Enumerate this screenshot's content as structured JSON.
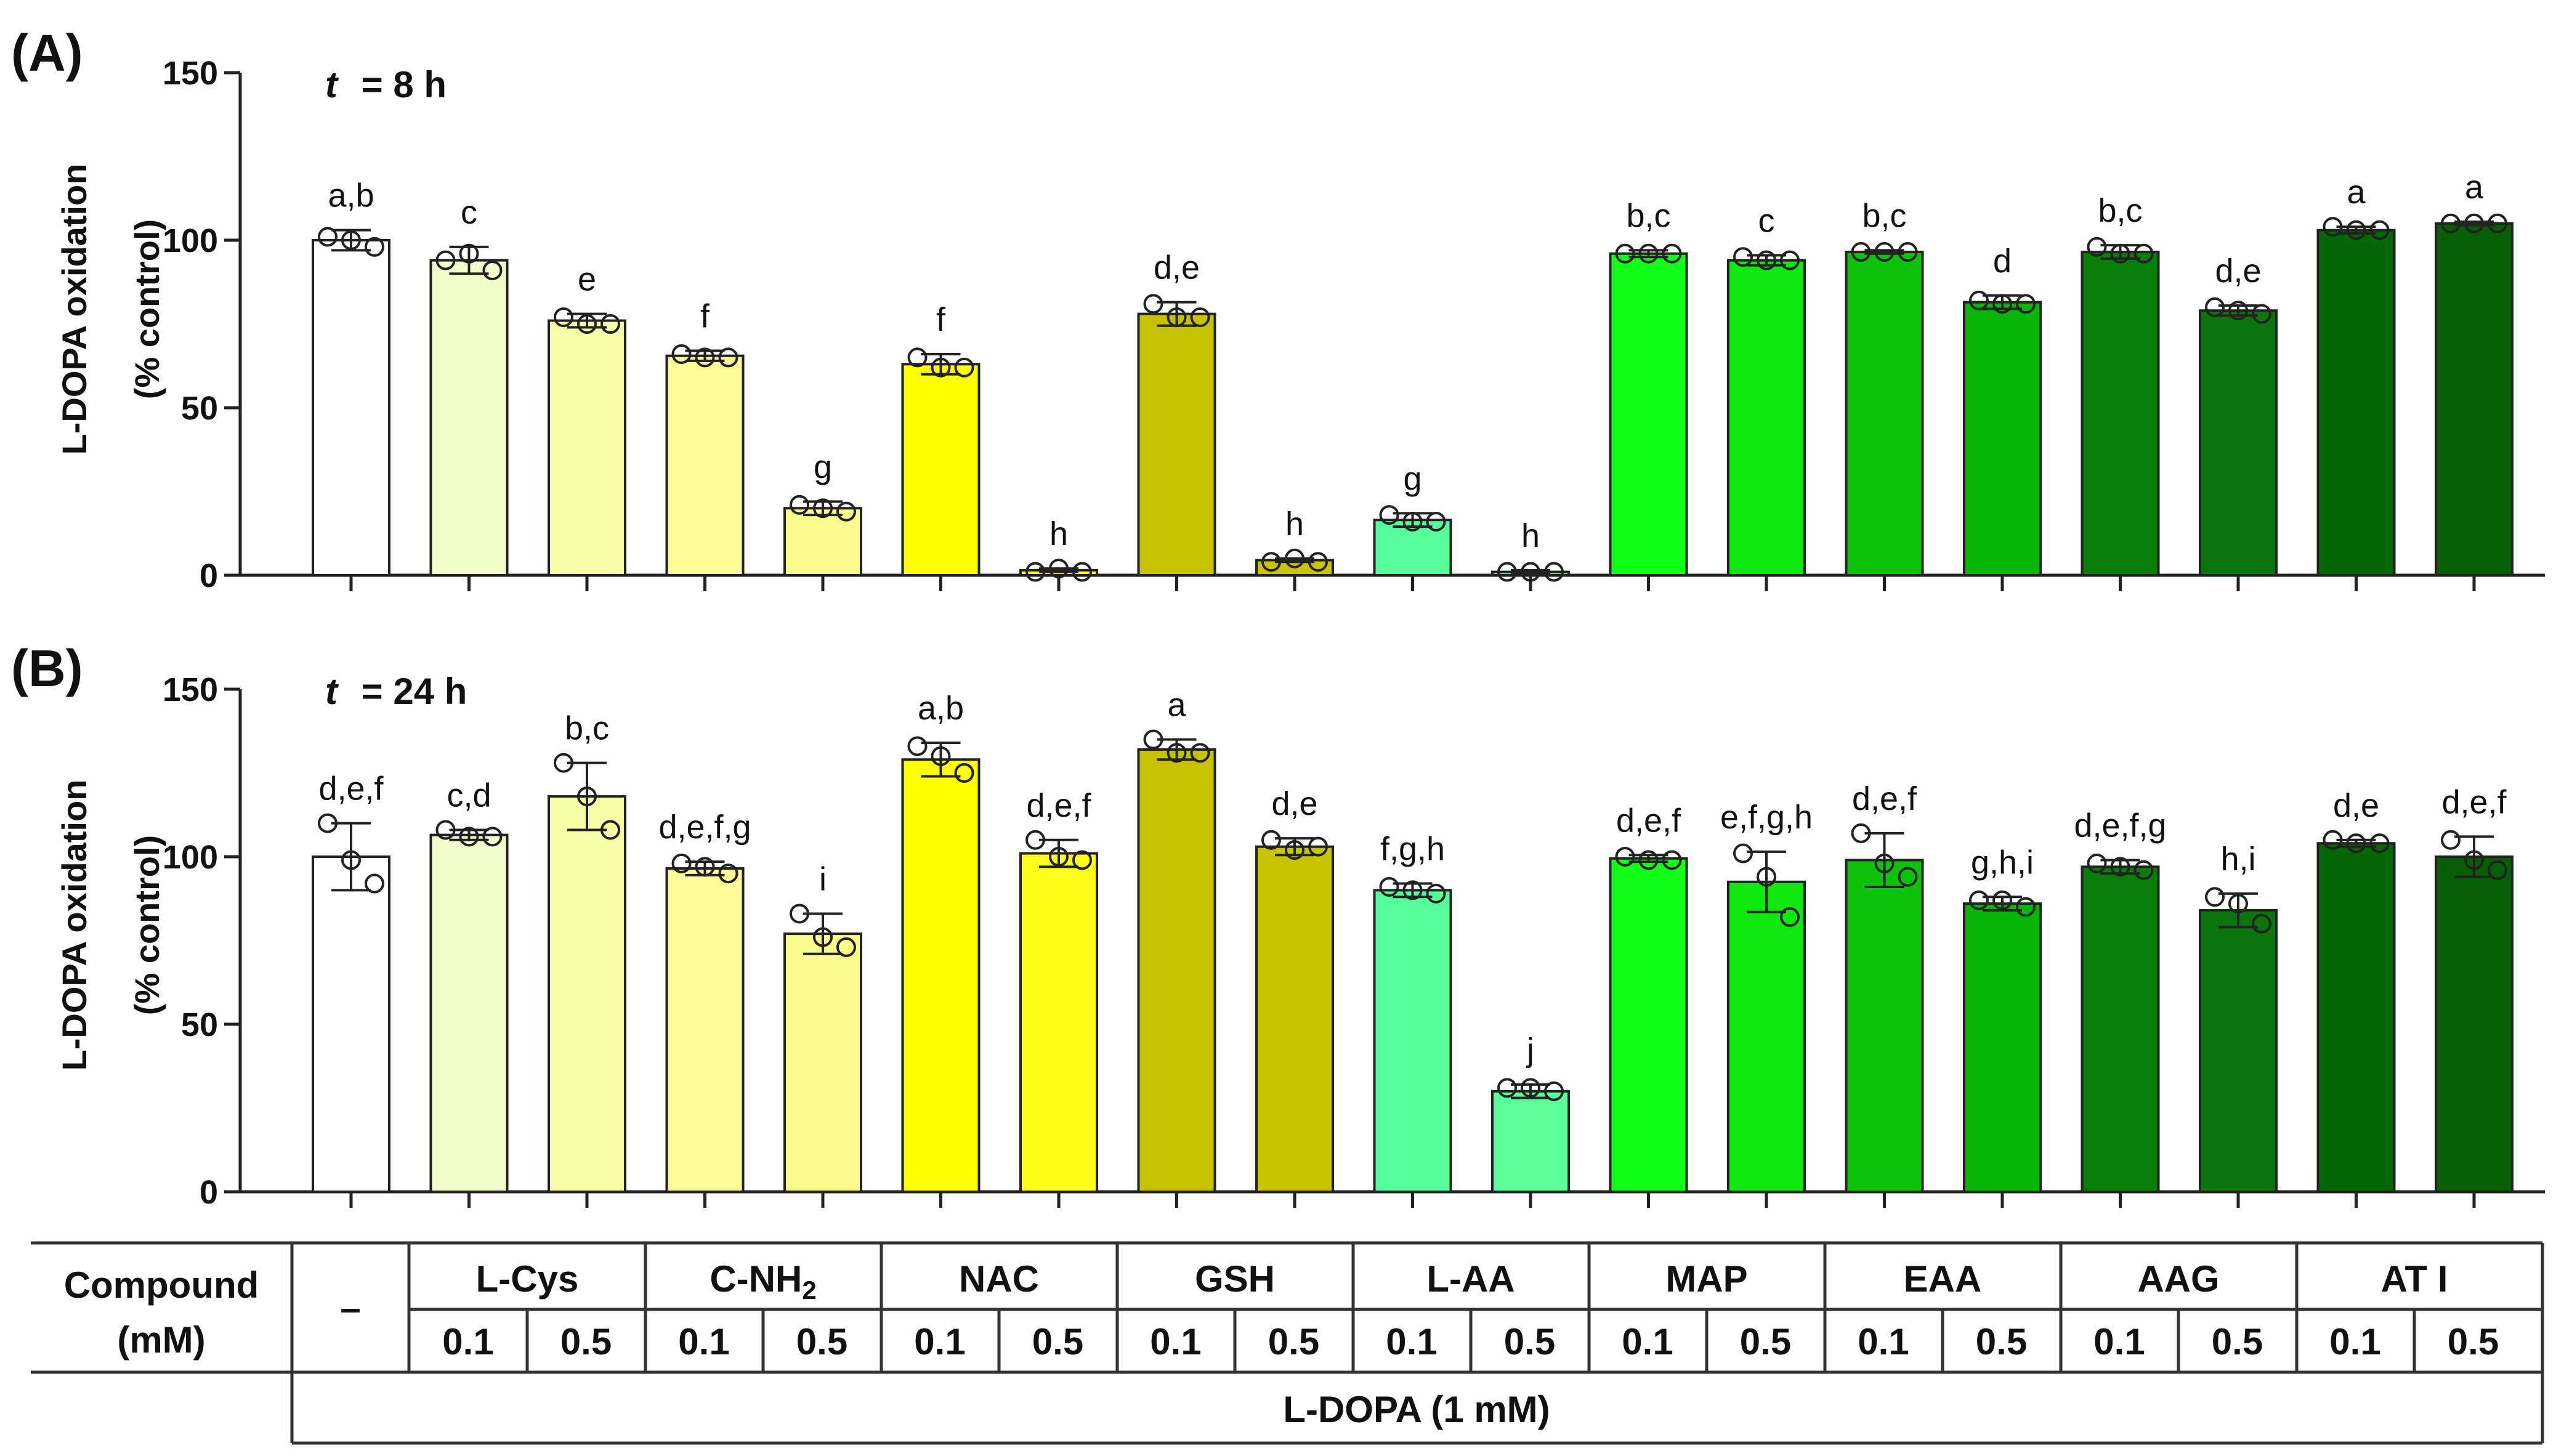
{
  "chart_data": [
    {
      "type": "bar",
      "panel_label": "(A)",
      "time_label": {
        "var": "t",
        "text": "= 8 h"
      },
      "ylabel_line1": "L-DOPA oxidation",
      "ylabel_line2": "(% control)",
      "ylim": [
        0,
        150
      ],
      "yticks": [
        "0",
        "50",
        "100",
        "150"
      ],
      "values": [
        100,
        94,
        76,
        65.5,
        20,
        63,
        1.5,
        78,
        4.5,
        16.5,
        1,
        96,
        94,
        96.5,
        81.5,
        96.5,
        79,
        103,
        105
      ],
      "errors": [
        3,
        4,
        2,
        1.5,
        2,
        3,
        0.5,
        3.5,
        0.5,
        2,
        0.5,
        1,
        1.5,
        0.5,
        2,
        2,
        1.5,
        1,
        0.5
      ],
      "points": [
        [
          101,
          100,
          98
        ],
        [
          94,
          96,
          91
        ],
        [
          77,
          75,
          75
        ],
        [
          66,
          65,
          65
        ],
        [
          21,
          20,
          19
        ],
        [
          65,
          62,
          62
        ],
        [
          1,
          2,
          1
        ],
        [
          81,
          77,
          77
        ],
        [
          4,
          5,
          4
        ],
        [
          18,
          16,
          16
        ],
        [
          1,
          1,
          1
        ],
        [
          96,
          96,
          96
        ],
        [
          95,
          94,
          94
        ],
        [
          96.5,
          96.5,
          96.5
        ],
        [
          82,
          81,
          81
        ],
        [
          98,
          96,
          96
        ],
        [
          80,
          79,
          78
        ],
        [
          104,
          103,
          103
        ],
        [
          105,
          105,
          105
        ]
      ],
      "letters": [
        "a,b",
        "c",
        "e",
        "f",
        "g",
        "f",
        "h",
        "d,e",
        "h",
        "g",
        "h",
        "b,c",
        "c",
        "b,c",
        "d",
        "b,c",
        "d,e",
        "a",
        "a"
      ]
    },
    {
      "type": "bar",
      "panel_label": "(B)",
      "time_label": {
        "var": "t",
        "text": "= 24 h"
      },
      "ylabel_line1": "L-DOPA oxidation",
      "ylabel_line2": "(% control)",
      "ylim": [
        0,
        150
      ],
      "yticks": [
        "0",
        "50",
        "100",
        "150"
      ],
      "values": [
        100,
        106.5,
        118,
        96.5,
        77,
        129,
        101,
        132,
        103,
        90,
        30,
        99.5,
        92.5,
        99,
        86,
        97,
        84,
        104,
        100
      ],
      "errors": [
        10,
        1.5,
        10,
        2,
        6,
        5,
        4,
        3,
        2.5,
        2,
        2,
        1,
        9,
        8,
        2,
        2,
        5,
        1,
        6
      ],
      "points": [
        [
          110,
          99,
          92
        ],
        [
          108,
          106,
          106
        ],
        [
          128,
          118,
          108
        ],
        [
          98,
          97,
          95
        ],
        [
          83,
          76,
          73
        ],
        [
          133,
          130,
          125
        ],
        [
          105,
          100,
          99
        ],
        [
          135,
          131,
          131
        ],
        [
          105,
          102,
          103
        ],
        [
          91,
          90,
          89
        ],
        [
          31,
          31,
          30
        ],
        [
          100,
          99,
          99
        ],
        [
          101,
          94,
          82
        ],
        [
          107,
          98,
          94
        ],
        [
          87,
          87,
          85
        ],
        [
          98,
          97,
          96
        ],
        [
          88,
          86,
          80
        ],
        [
          105,
          104,
          104
        ],
        [
          105,
          99,
          96
        ]
      ],
      "letters": [
        "d,e,f",
        "c,d",
        "b,c",
        "d,e,f,g",
        "i",
        "a,b",
        "d,e,f",
        "a",
        "d,e",
        "f,g,h",
        "j",
        "d,e,f",
        "e,f,g,h",
        "d,e,f",
        "g,h,i",
        "d,e,f,g",
        "h,i",
        "d,e",
        "d,e,f"
      ]
    }
  ],
  "bar_colors": [
    "#ffffff",
    "#f2fccd",
    "#f7fca6",
    "#fbfc96",
    "#f9fb8a",
    "#ffff00",
    "#ffff19",
    "#c6c200",
    "#c9c400",
    "#55ff9c",
    "#5cff9c",
    "#13ff1a",
    "#0fe80f",
    "#0ac30a",
    "#08b608",
    "#087e08",
    "#0c740c",
    "#046604",
    "#045e04"
  ],
  "table": {
    "header_label_line1": "Compound",
    "header_label_line2": "(mM)",
    "control_mark": "–",
    "compounds": [
      "L-Cys",
      "C-NH",
      "NAC",
      "GSH",
      "L-AA",
      "MAP",
      "EAA",
      "AAG",
      "AT I"
    ],
    "subscript": "2",
    "concentrations": [
      "0.1",
      "0.5"
    ],
    "footer": "L-DOPA (1 mM)"
  }
}
